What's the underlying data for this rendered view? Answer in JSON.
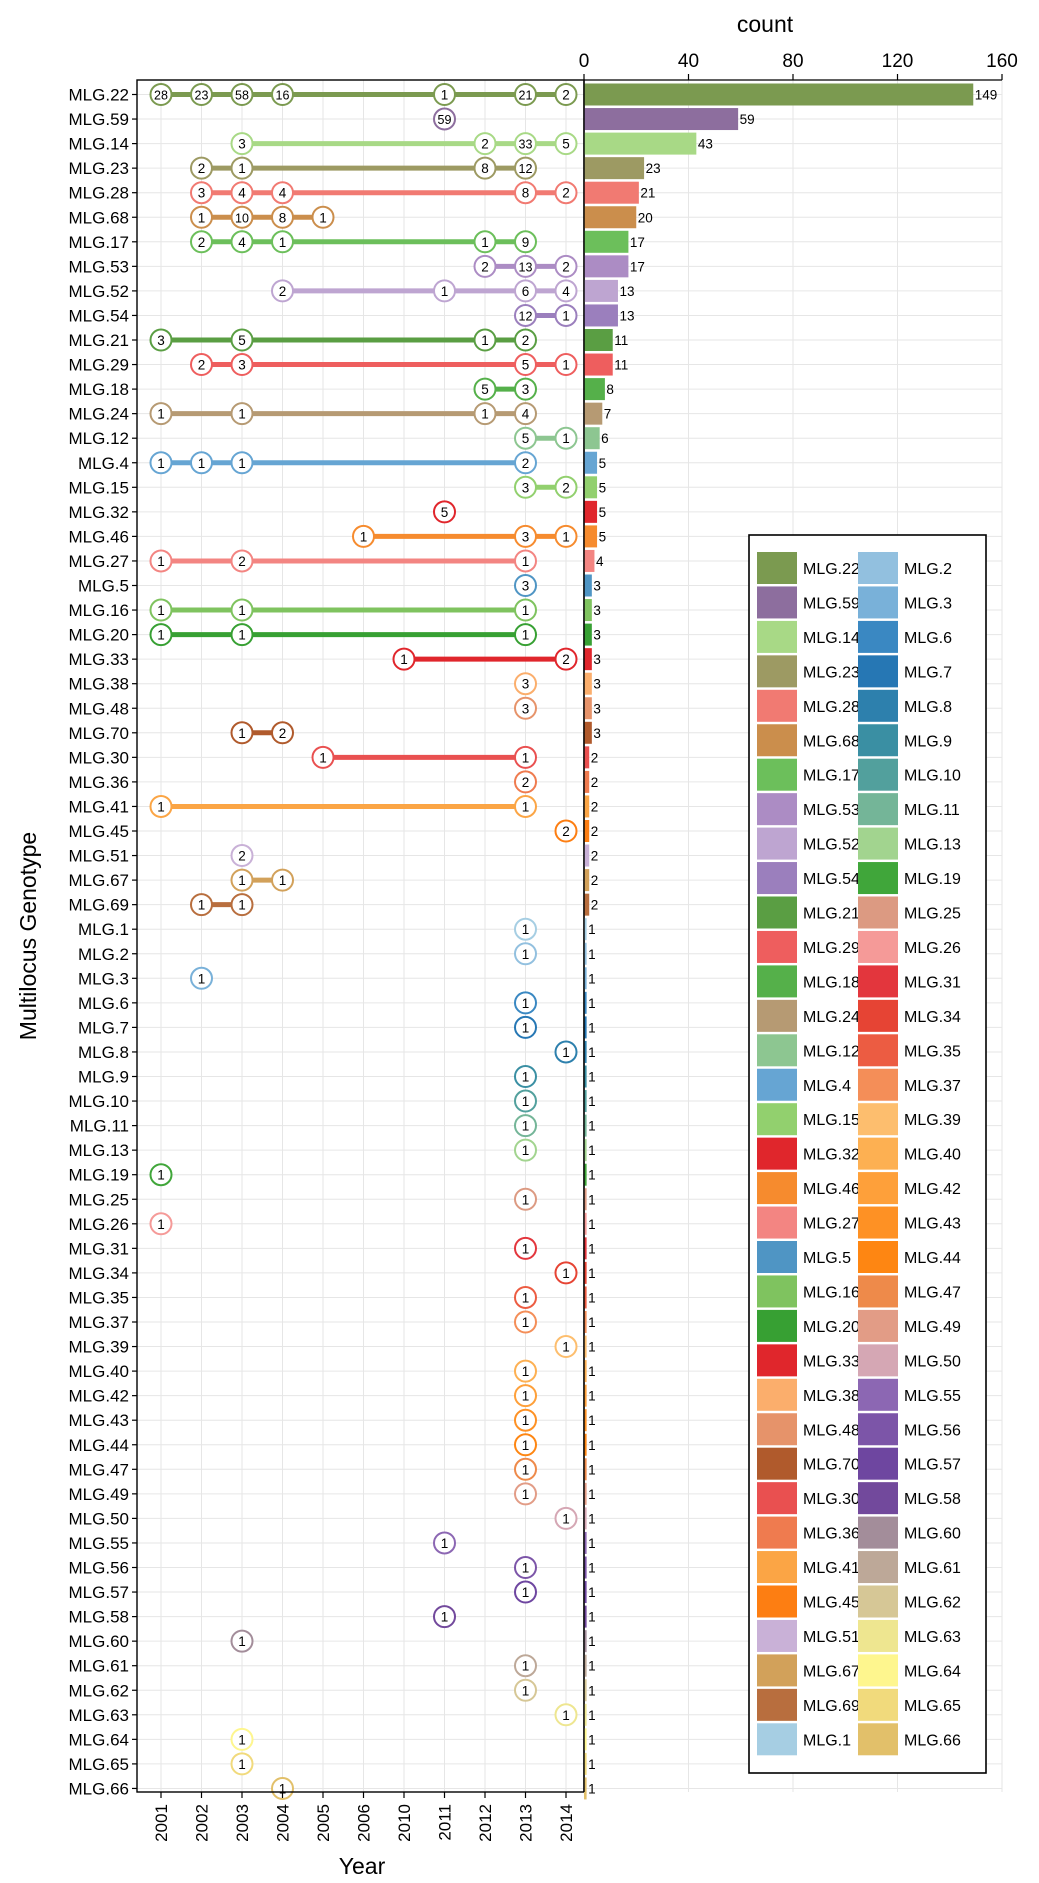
{
  "chart_data": {
    "type": "timeline-dot-plus-bar",
    "y_label": "Multilocus Genotype",
    "x_label": "Year",
    "count_label": "count",
    "years": [
      "2001",
      "2002",
      "2003",
      "2004",
      "2005",
      "2006",
      "2010",
      "2011",
      "2012",
      "2013",
      "2014"
    ],
    "count_ticks": [
      0,
      40,
      80,
      120,
      160
    ],
    "count_range": [
      0,
      160
    ],
    "grid": true,
    "legend_position": "right",
    "rows": [
      {
        "name": "MLG.22",
        "color": "#7b9a50",
        "count": 149,
        "points": [
          [
            "2001",
            28
          ],
          [
            "2002",
            23
          ],
          [
            "2003",
            58
          ],
          [
            "2004",
            16
          ],
          [
            "2011",
            1
          ],
          [
            "2013",
            21
          ],
          [
            "2014",
            2
          ]
        ]
      },
      {
        "name": "MLG.59",
        "color": "#8d6e9e",
        "count": 59,
        "points": [
          [
            "2011",
            59
          ]
        ]
      },
      {
        "name": "MLG.14",
        "color": "#a8d986",
        "count": 43,
        "points": [
          [
            "2003",
            3
          ],
          [
            "2012",
            2
          ],
          [
            "2013",
            33
          ],
          [
            "2014",
            5
          ]
        ]
      },
      {
        "name": "MLG.23",
        "color": "#9d9a63",
        "count": 23,
        "points": [
          [
            "2002",
            2
          ],
          [
            "2003",
            1
          ],
          [
            "2012",
            8
          ],
          [
            "2013",
            12
          ]
        ]
      },
      {
        "name": "MLG.28",
        "color": "#f17a72",
        "count": 21,
        "points": [
          [
            "2002",
            3
          ],
          [
            "2003",
            4
          ],
          [
            "2004",
            4
          ],
          [
            "2013",
            8
          ],
          [
            "2014",
            2
          ]
        ]
      },
      {
        "name": "MLG.68",
        "color": "#cb8e4c",
        "count": 20,
        "points": [
          [
            "2002",
            1
          ],
          [
            "2003",
            10
          ],
          [
            "2004",
            8
          ],
          [
            "2005",
            1
          ]
        ]
      },
      {
        "name": "MLG.17",
        "color": "#6cbf5b",
        "count": 17,
        "points": [
          [
            "2002",
            2
          ],
          [
            "2003",
            4
          ],
          [
            "2004",
            1
          ],
          [
            "2012",
            1
          ],
          [
            "2013",
            9
          ]
        ]
      },
      {
        "name": "MLG.53",
        "color": "#ac8cc4",
        "count": 17,
        "points": [
          [
            "2012",
            2
          ],
          [
            "2013",
            13
          ],
          [
            "2014",
            2
          ]
        ]
      },
      {
        "name": "MLG.52",
        "color": "#bea5d1",
        "count": 13,
        "points": [
          [
            "2004",
            2
          ],
          [
            "2011",
            1
          ],
          [
            "2013",
            6
          ],
          [
            "2014",
            4
          ]
        ]
      },
      {
        "name": "MLG.54",
        "color": "#9b7fbd",
        "count": 13,
        "points": [
          [
            "2013",
            12
          ],
          [
            "2014",
            1
          ]
        ]
      },
      {
        "name": "MLG.21",
        "color": "#5a9e43",
        "count": 11,
        "points": [
          [
            "2001",
            3
          ],
          [
            "2003",
            5
          ],
          [
            "2012",
            1
          ],
          [
            "2013",
            2
          ]
        ]
      },
      {
        "name": "MLG.29",
        "color": "#ee5e5e",
        "count": 11,
        "points": [
          [
            "2002",
            2
          ],
          [
            "2003",
            3
          ],
          [
            "2013",
            5
          ],
          [
            "2014",
            1
          ]
        ]
      },
      {
        "name": "MLG.18",
        "color": "#55b04a",
        "count": 8,
        "points": [
          [
            "2012",
            5
          ],
          [
            "2013",
            3
          ]
        ]
      },
      {
        "name": "MLG.24",
        "color": "#b69a73",
        "count": 7,
        "points": [
          [
            "2001",
            1
          ],
          [
            "2003",
            1
          ],
          [
            "2012",
            1
          ],
          [
            "2013",
            4
          ]
        ]
      },
      {
        "name": "MLG.12",
        "color": "#8dc691",
        "count": 6,
        "points": [
          [
            "2013",
            5
          ],
          [
            "2014",
            1
          ]
        ]
      },
      {
        "name": "MLG.4",
        "color": "#66a5d3",
        "count": 5,
        "points": [
          [
            "2001",
            1
          ],
          [
            "2002",
            1
          ],
          [
            "2003",
            1
          ],
          [
            "2013",
            2
          ]
        ]
      },
      {
        "name": "MLG.15",
        "color": "#92d06e",
        "count": 5,
        "points": [
          [
            "2013",
            3
          ],
          [
            "2014",
            2
          ]
        ]
      },
      {
        "name": "MLG.32",
        "color": "#e0262c",
        "count": 5,
        "points": [
          [
            "2011",
            5
          ]
        ]
      },
      {
        "name": "MLG.46",
        "color": "#f68b2e",
        "count": 5,
        "points": [
          [
            "2006",
            1
          ],
          [
            "2013",
            3
          ],
          [
            "2014",
            1
          ]
        ]
      },
      {
        "name": "MLG.27",
        "color": "#f38582",
        "count": 4,
        "points": [
          [
            "2001",
            1
          ],
          [
            "2003",
            2
          ],
          [
            "2013",
            1
          ]
        ]
      },
      {
        "name": "MLG.5",
        "color": "#4f95c4",
        "count": 3,
        "points": [
          [
            "2013",
            3
          ]
        ]
      },
      {
        "name": "MLG.16",
        "color": "#7fc35f",
        "count": 3,
        "points": [
          [
            "2001",
            1
          ],
          [
            "2003",
            1
          ],
          [
            "2013",
            1
          ]
        ]
      },
      {
        "name": "MLG.20",
        "color": "#37a033",
        "count": 3,
        "points": [
          [
            "2001",
            1
          ],
          [
            "2003",
            1
          ],
          [
            "2013",
            1
          ]
        ]
      },
      {
        "name": "MLG.33",
        "color": "#e0262c",
        "count": 3,
        "points": [
          [
            "2010",
            1
          ],
          [
            "2014",
            2
          ]
        ]
      },
      {
        "name": "MLG.38",
        "color": "#fbae6c",
        "count": 3,
        "points": [
          [
            "2013",
            3
          ]
        ]
      },
      {
        "name": "MLG.48",
        "color": "#e6936a",
        "count": 3,
        "points": [
          [
            "2013",
            3
          ]
        ]
      },
      {
        "name": "MLG.70",
        "color": "#b05a2c",
        "count": 3,
        "points": [
          [
            "2003",
            1
          ],
          [
            "2004",
            2
          ]
        ]
      },
      {
        "name": "MLG.30",
        "color": "#e95050",
        "count": 2,
        "points": [
          [
            "2005",
            1
          ],
          [
            "2013",
            1
          ]
        ]
      },
      {
        "name": "MLG.36",
        "color": "#ef7b4f",
        "count": 2,
        "points": [
          [
            "2013",
            2
          ]
        ]
      },
      {
        "name": "MLG.41",
        "color": "#fba545",
        "count": 2,
        "points": [
          [
            "2001",
            1
          ],
          [
            "2013",
            1
          ]
        ]
      },
      {
        "name": "MLG.45",
        "color": "#fd7e12",
        "count": 2,
        "points": [
          [
            "2014",
            2
          ]
        ]
      },
      {
        "name": "MLG.51",
        "color": "#c9b1d7",
        "count": 2,
        "points": [
          [
            "2003",
            2
          ]
        ]
      },
      {
        "name": "MLG.67",
        "color": "#d2a15a",
        "count": 2,
        "points": [
          [
            "2003",
            1
          ],
          [
            "2004",
            1
          ]
        ]
      },
      {
        "name": "MLG.69",
        "color": "#b86e3e",
        "count": 2,
        "points": [
          [
            "2002",
            1
          ],
          [
            "2003",
            1
          ]
        ]
      },
      {
        "name": "MLG.1",
        "color": "#a6cee3",
        "count": 1,
        "points": [
          [
            "2013",
            1
          ]
        ]
      },
      {
        "name": "MLG.2",
        "color": "#92c0df",
        "count": 1,
        "points": [
          [
            "2013",
            1
          ]
        ]
      },
      {
        "name": "MLG.3",
        "color": "#79b1d9",
        "count": 1,
        "points": [
          [
            "2002",
            1
          ]
        ]
      },
      {
        "name": "MLG.6",
        "color": "#3a88c2",
        "count": 1,
        "points": [
          [
            "2013",
            1
          ]
        ]
      },
      {
        "name": "MLG.7",
        "color": "#2677b4",
        "count": 1,
        "points": [
          [
            "2013",
            1
          ]
        ]
      },
      {
        "name": "MLG.8",
        "color": "#2d80ad",
        "count": 1,
        "points": [
          [
            "2014",
            1
          ]
        ]
      },
      {
        "name": "MLG.9",
        "color": "#3a8fa3",
        "count": 1,
        "points": [
          [
            "2013",
            1
          ]
        ]
      },
      {
        "name": "MLG.10",
        "color": "#52a09d",
        "count": 1,
        "points": [
          [
            "2013",
            1
          ]
        ]
      },
      {
        "name": "MLG.11",
        "color": "#74b598",
        "count": 1,
        "points": [
          [
            "2013",
            1
          ]
        ]
      },
      {
        "name": "MLG.13",
        "color": "#a2d48f",
        "count": 1,
        "points": [
          [
            "2013",
            1
          ]
        ]
      },
      {
        "name": "MLG.19",
        "color": "#40a63a",
        "count": 1,
        "points": [
          [
            "2001",
            1
          ]
        ]
      },
      {
        "name": "MLG.25",
        "color": "#dc9a82",
        "count": 1,
        "points": [
          [
            "2013",
            1
          ]
        ]
      },
      {
        "name": "MLG.26",
        "color": "#f59a98",
        "count": 1,
        "points": [
          [
            "2001",
            1
          ]
        ]
      },
      {
        "name": "MLG.31",
        "color": "#e3363d",
        "count": 1,
        "points": [
          [
            "2013",
            1
          ]
        ]
      },
      {
        "name": "MLG.34",
        "color": "#e64434",
        "count": 1,
        "points": [
          [
            "2014",
            1
          ]
        ]
      },
      {
        "name": "MLG.35",
        "color": "#ec5c42",
        "count": 1,
        "points": [
          [
            "2013",
            1
          ]
        ]
      },
      {
        "name": "MLG.37",
        "color": "#f48e58",
        "count": 1,
        "points": [
          [
            "2013",
            1
          ]
        ]
      },
      {
        "name": "MLG.39",
        "color": "#fdbe6e",
        "count": 1,
        "points": [
          [
            "2014",
            1
          ]
        ]
      },
      {
        "name": "MLG.40",
        "color": "#fdb052",
        "count": 1,
        "points": [
          [
            "2013",
            1
          ]
        ]
      },
      {
        "name": "MLG.42",
        "color": "#fea03a",
        "count": 1,
        "points": [
          [
            "2013",
            1
          ]
        ]
      },
      {
        "name": "MLG.43",
        "color": "#fe9124",
        "count": 1,
        "points": [
          [
            "2013",
            1
          ]
        ]
      },
      {
        "name": "MLG.44",
        "color": "#fe8612",
        "count": 1,
        "points": [
          [
            "2013",
            1
          ]
        ]
      },
      {
        "name": "MLG.47",
        "color": "#ee8a4a",
        "count": 1,
        "points": [
          [
            "2013",
            1
          ]
        ]
      },
      {
        "name": "MLG.49",
        "color": "#e29c86",
        "count": 1,
        "points": [
          [
            "2013",
            1
          ]
        ]
      },
      {
        "name": "MLG.50",
        "color": "#d5a7b4",
        "count": 1,
        "points": [
          [
            "2014",
            1
          ]
        ]
      },
      {
        "name": "MLG.55",
        "color": "#8c67b3",
        "count": 1,
        "points": [
          [
            "2011",
            1
          ]
        ]
      },
      {
        "name": "MLG.56",
        "color": "#7c55a8",
        "count": 1,
        "points": [
          [
            "2013",
            1
          ]
        ]
      },
      {
        "name": "MLG.57",
        "color": "#6e46a0",
        "count": 1,
        "points": [
          [
            "2013",
            1
          ]
        ]
      },
      {
        "name": "MLG.58",
        "color": "#72499c",
        "count": 1,
        "points": [
          [
            "2011",
            1
          ]
        ]
      },
      {
        "name": "MLG.60",
        "color": "#a38d9a",
        "count": 1,
        "points": [
          [
            "2003",
            1
          ]
        ]
      },
      {
        "name": "MLG.61",
        "color": "#bda898",
        "count": 1,
        "points": [
          [
            "2013",
            1
          ]
        ]
      },
      {
        "name": "MLG.62",
        "color": "#d6c796",
        "count": 1,
        "points": [
          [
            "2013",
            1
          ]
        ]
      },
      {
        "name": "MLG.63",
        "color": "#eee690",
        "count": 1,
        "points": [
          [
            "2014",
            1
          ]
        ]
      },
      {
        "name": "MLG.64",
        "color": "#fef68e",
        "count": 1,
        "points": [
          [
            "2003",
            1
          ]
        ]
      },
      {
        "name": "MLG.65",
        "color": "#f1da7c",
        "count": 1,
        "points": [
          [
            "2003",
            1
          ]
        ]
      },
      {
        "name": "MLG.66",
        "color": "#e2c06a",
        "count": 1,
        "points": [
          [
            "2004",
            1
          ]
        ]
      }
    ]
  }
}
